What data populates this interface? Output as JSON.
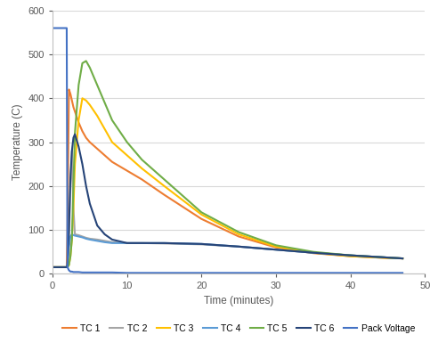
{
  "chart_data": {
    "type": "line",
    "xlabel": "Time (minutes)",
    "ylabel": "Temperature (C)",
    "x": [
      0,
      1.9,
      2.0,
      2.2,
      2.4,
      2.6,
      2.8,
      3,
      3.5,
      4,
      4.5,
      5,
      6,
      7,
      8,
      10,
      12,
      15,
      20,
      25,
      30,
      35,
      40,
      45,
      47
    ],
    "series": [
      {
        "name": "TC 1",
        "color": "#ed7d31",
        "values": [
          15,
          15,
          100,
          420,
          410,
          395,
          380,
          370,
          345,
          325,
          310,
          300,
          285,
          270,
          255,
          235,
          215,
          180,
          125,
          85,
          60,
          47,
          40,
          36,
          35
        ]
      },
      {
        "name": "TC 2",
        "color": "#a5a5a5",
        "values": [
          15,
          15,
          20,
          80,
          200,
          280,
          150,
          90,
          88,
          85,
          82,
          80,
          78,
          75,
          72,
          70,
          70,
          69,
          67,
          62,
          55,
          48,
          42,
          37,
          35
        ]
      },
      {
        "name": "TC 3",
        "color": "#ffc000",
        "values": [
          15,
          15,
          15,
          20,
          40,
          80,
          150,
          250,
          350,
          400,
          395,
          385,
          360,
          330,
          300,
          270,
          240,
          200,
          135,
          90,
          62,
          48,
          40,
          36,
          35
        ]
      },
      {
        "name": "TC 4",
        "color": "#5b9bd5",
        "values": [
          15,
          15,
          20,
          60,
          85,
          90,
          88,
          87,
          85,
          83,
          80,
          78,
          75,
          72,
          70,
          70,
          70,
          70,
          68,
          62,
          55,
          48,
          42,
          37,
          35
        ]
      },
      {
        "name": "TC 5",
        "color": "#70ad47",
        "values": [
          15,
          15,
          15,
          20,
          40,
          80,
          200,
          320,
          430,
          480,
          485,
          470,
          430,
          390,
          350,
          300,
          260,
          215,
          140,
          95,
          65,
          50,
          42,
          37,
          35
        ]
      },
      {
        "name": "TC 6",
        "color": "#264478",
        "values": [
          15,
          15,
          20,
          100,
          220,
          280,
          310,
          318,
          290,
          250,
          200,
          160,
          110,
          90,
          78,
          70,
          70,
          70,
          68,
          62,
          55,
          48,
          42,
          37,
          35
        ]
      },
      {
        "name": "Pack Voltage",
        "color": "#4472c4",
        "values": [
          560,
          560,
          15,
          8,
          5,
          5,
          4,
          4,
          4,
          3,
          3,
          3,
          3,
          3,
          3,
          2,
          2,
          2,
          2,
          2,
          2,
          2,
          2,
          2,
          2
        ]
      }
    ],
    "xlim": [
      0,
      50
    ],
    "xticks": [
      0,
      10,
      20,
      30,
      40,
      50
    ],
    "ylim": [
      0,
      600
    ],
    "yticks": [
      0,
      100,
      200,
      300,
      400,
      500,
      600
    ],
    "grid": true,
    "legend": "bottom"
  }
}
